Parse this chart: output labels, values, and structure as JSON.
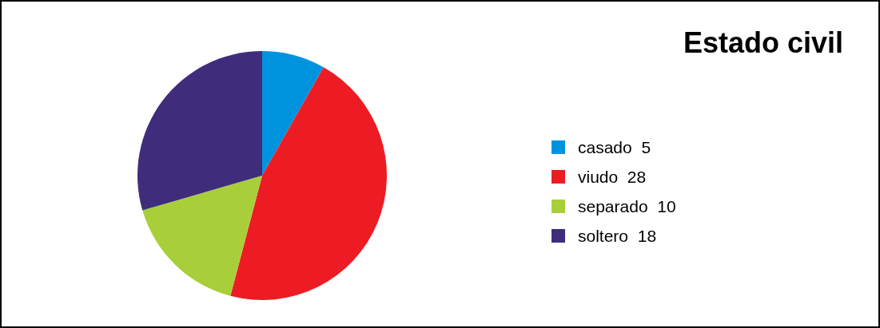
{
  "chart_data": {
    "type": "pie",
    "title": "Estado civil",
    "categories": [
      "casado",
      "viudo",
      "separado",
      "soltero"
    ],
    "values": [
      5,
      28,
      10,
      18
    ],
    "colors": [
      "#0093dd",
      "#ed1c24",
      "#a8cf3a",
      "#3f2d7c"
    ],
    "legend": "right",
    "data_labels": true
  }
}
